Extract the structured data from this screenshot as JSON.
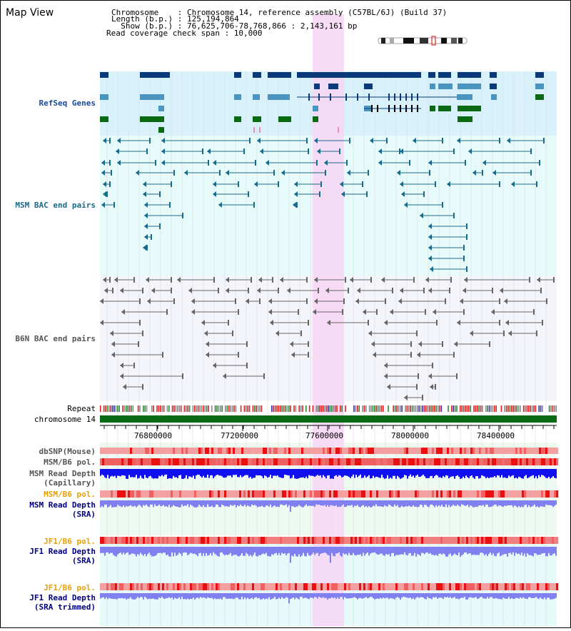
{
  "title": "Map View",
  "header": {
    "line1": "Chromosome    : Chromosome 14, reference assembly (C57BL/6J) (Build 37)",
    "line2": "Length (b.p.) : 125,194,864",
    "line3": "  Show (b.p.) : 76,625,706-78,768,866 : 2,143,161 bp",
    "line4": "Read coverage check span : 10,000"
  },
  "tracks": {
    "refseq": "RefSeq Genes",
    "msm_bac": "MSM BAC end pairs",
    "b6n_bac": "B6N BAC end pairs",
    "repeat": "Repeat",
    "chrom": "chromosome 14",
    "dbsnp": "dbSNP(Mouse)",
    "msm_pol": "MSM/B6 pol.",
    "msm_depth_cap_1": "MSM Read Depth",
    "msm_depth_cap_2": "(Capillary)",
    "msm_pol2": "MSM/B6 pol.",
    "msm_depth_sra_1": "MSM Read Depth",
    "msm_depth_sra_2": "(SRA)",
    "jf1_pol": "JF1/B6 pol.",
    "jf1_depth_1": "JF1 Read Depth",
    "jf1_depth_2": "(SRA)",
    "jf1_pol2": "JF1/B6 pol.",
    "jf1_trim_1": "JF1 Read Depth",
    "jf1_trim_2": "(SRA trimmed)"
  },
  "axis": {
    "ticks": [
      "76800000",
      "77200000",
      "77600000",
      "78000000",
      "78400000"
    ]
  },
  "colors": {
    "highlight": "#f7d6f4",
    "refseq_bg": "#d9f1fb",
    "msm_bg": "#e8fbfb",
    "gene_dark": "#0a3a7a",
    "gene_mid": "#4a94c0",
    "gene_green": "#0a6a14",
    "msm_line": "#1a6a8a",
    "b6n_line": "#666666",
    "chrom_bar": "#0a6a14",
    "depth_blue": "#1010ee",
    "depth_light": "#8080f0",
    "orange_label": "#e8a000",
    "blue_label": "#000080"
  }
}
